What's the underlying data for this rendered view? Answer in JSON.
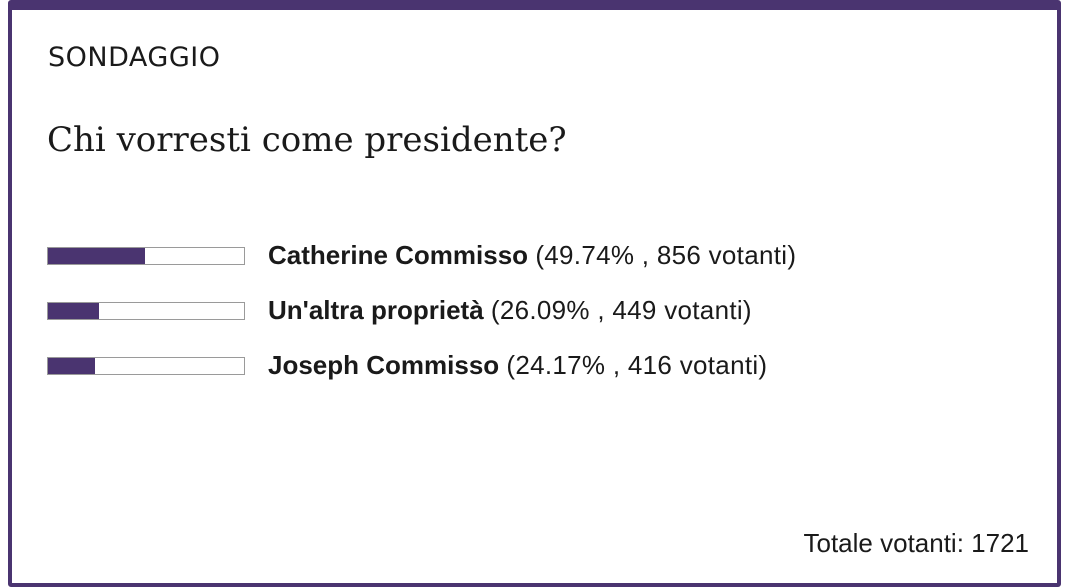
{
  "poll": {
    "label": "SONDAGGIO",
    "question": "Chi vorresti come presidente?",
    "accent_color": "#4a3470",
    "options": [
      {
        "name": "Catherine Commisso",
        "stats": "(49.74% , 856 votanti)",
        "percent": 49.74
      },
      {
        "name": "Un'altra proprietà",
        "stats": "(26.09% , 449 votanti)",
        "percent": 26.09
      },
      {
        "name": "Joseph Commisso",
        "stats": "(24.17% , 416 votanti)",
        "percent": 24.17
      }
    ],
    "total_text": "Totale votanti: 1721"
  }
}
